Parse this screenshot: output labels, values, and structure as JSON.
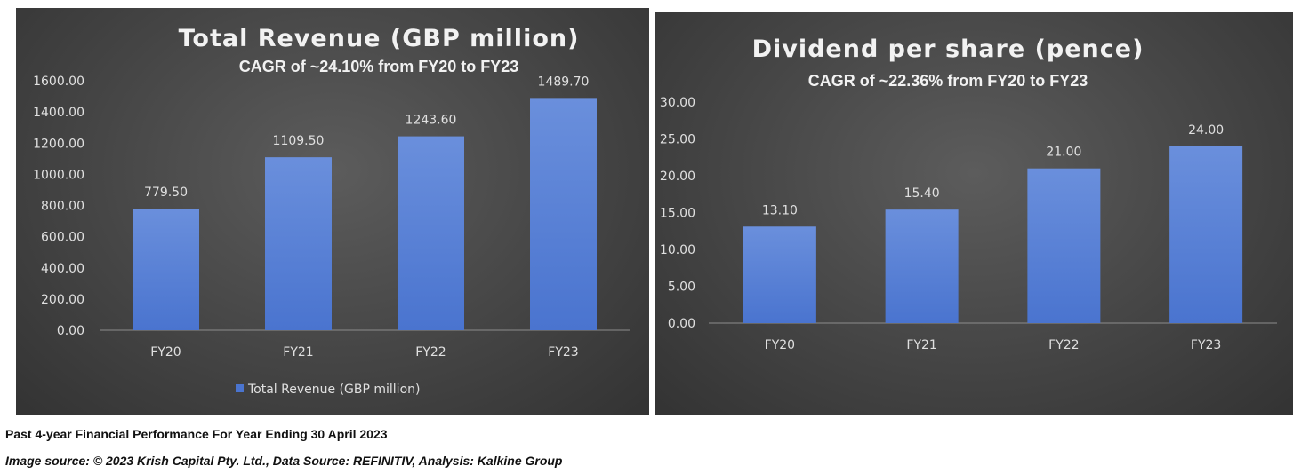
{
  "colors": {
    "bar": "#4a74cf",
    "bar_light": "#6a8fdc",
    "text": "#e0e0e0",
    "title": "#f2f2f2",
    "axis": "#8c8c8c"
  },
  "chart_data": [
    {
      "type": "bar",
      "title": "Total Revenue (GBP million)",
      "subtitle": "CAGR of ~24.10% from FY20 to FY23",
      "categories": [
        "FY20",
        "FY21",
        "FY22",
        "FY23"
      ],
      "series": [
        {
          "name": "Total Revenue (GBP million)",
          "values": [
            779.5,
            1109.5,
            1243.6,
            1489.7
          ]
        }
      ],
      "data_labels": [
        "779.50",
        "1109.50",
        "1243.60",
        "1489.70"
      ],
      "yticks": [
        "0.00",
        "200.00",
        "400.00",
        "600.00",
        "800.00",
        "1000.00",
        "1200.00",
        "1400.00",
        "1600.00"
      ],
      "ylim": [
        0,
        1600
      ],
      "legend": "bottom",
      "grid": false
    },
    {
      "type": "bar",
      "title": "Dividend per share (pence)",
      "subtitle": "CAGR of ~22.36% from FY20 to FY23",
      "categories": [
        "FY20",
        "FY21",
        "FY22",
        "FY23"
      ],
      "series": [
        {
          "values": [
            13.1,
            15.4,
            21.0,
            24.0
          ]
        }
      ],
      "data_labels": [
        "13.10",
        "15.40",
        "21.00",
        "24.00"
      ],
      "yticks": [
        "0.00",
        "5.00",
        "10.00",
        "15.00",
        "20.00",
        "25.00",
        "30.00"
      ],
      "ylim": [
        0,
        30
      ],
      "legend": "none",
      "grid": false
    }
  ],
  "captions": {
    "line1": "Past 4-year Financial Performance For Year Ending 30 April 2023",
    "line2": "Image source: © 2023 Krish Capital Pty. Ltd., Data Source: REFINITIV, Analysis: Kalkine Group"
  }
}
